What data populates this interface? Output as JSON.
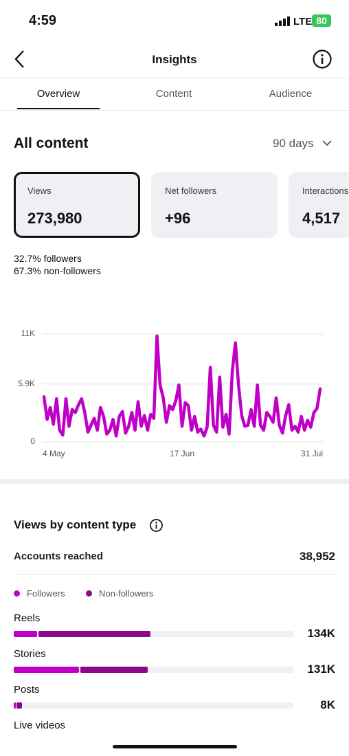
{
  "status_bar": {
    "time": "4:59",
    "network": "LTE",
    "battery": "80"
  },
  "header": {
    "title": "Insights"
  },
  "tabs": [
    "Overview",
    "Content",
    "Audience"
  ],
  "section": {
    "title": "All content",
    "range": "90 days"
  },
  "cards": [
    {
      "label": "Views",
      "value": "273,980"
    },
    {
      "label": "Net followers",
      "value": "+96"
    },
    {
      "label": "Interactions",
      "value": "4,517"
    }
  ],
  "breakdown": [
    "32.7% followers",
    "67.3% non-followers"
  ],
  "reach": {
    "label": "Accounts reached",
    "value": "38,952"
  },
  "chart_data": [
    {
      "type": "line",
      "color": "#c000c8",
      "categories": [
        "4 May",
        null,
        null,
        null,
        null,
        null,
        null,
        null,
        null,
        null,
        null,
        null,
        null,
        null,
        null,
        null,
        null,
        null,
        null,
        null,
        null,
        null,
        null,
        null,
        null,
        null,
        null,
        null,
        null,
        null,
        null,
        null,
        null,
        null,
        null,
        null,
        null,
        null,
        null,
        null,
        null,
        null,
        null,
        null,
        "17 Jun",
        null,
        null,
        null,
        null,
        null,
        null,
        null,
        null,
        null,
        null,
        null,
        null,
        null,
        null,
        null,
        null,
        null,
        null,
        null,
        null,
        null,
        null,
        null,
        null,
        null,
        null,
        null,
        null,
        null,
        null,
        null,
        null,
        null,
        null,
        null,
        null,
        null,
        null,
        null,
        null,
        null,
        null,
        null,
        "31 Jul"
      ],
      "values": [
        4600,
        2300,
        3500,
        1800,
        4400,
        1200,
        700,
        4400,
        1600,
        3300,
        3000,
        3800,
        4400,
        3000,
        1000,
        1700,
        2400,
        1200,
        3500,
        2600,
        800,
        1200,
        2300,
        600,
        2600,
        3100,
        900,
        1600,
        3000,
        1200,
        4100,
        1600,
        2700,
        1200,
        2800,
        2400,
        10800,
        5800,
        4500,
        2000,
        3700,
        3300,
        4200,
        5800,
        1600,
        4000,
        3700,
        1200,
        2600,
        1000,
        1300,
        600,
        1500,
        7600,
        1700,
        1000,
        6600,
        1500,
        2800,
        800,
        7200,
        10100,
        5800,
        2700,
        1600,
        1700,
        3300,
        1600,
        5800,
        1700,
        1200,
        3000,
        2600,
        2000,
        4500,
        1700,
        900,
        2700,
        3800,
        1200,
        1600,
        1000,
        2600,
        1200,
        2200,
        1500,
        3000,
        3400,
        5400
      ],
      "ylim": [
        0,
        11000
      ],
      "yticks": [
        0,
        {
          "value": 5900,
          "label": "5.9K"
        },
        {
          "value": 11000,
          "label": "11K"
        }
      ],
      "grid": true
    },
    {
      "type": "bar",
      "title": "Views by content type",
      "categories": [
        "Reels",
        "Stories",
        "Posts",
        "Live videos"
      ],
      "series": [
        {
          "name": "Followers",
          "color": "#c000c8",
          "values": [
            23000,
            64000,
            2000,
            null
          ]
        },
        {
          "name": "Non-followers",
          "color": "#8a0a8c",
          "values": [
            111000,
            67000,
            6000,
            null
          ]
        }
      ],
      "totals": [
        134000,
        131000,
        8000,
        null
      ],
      "value_labels": [
        "134K",
        "131K",
        "8K",
        null
      ],
      "xlim": [
        0,
        273980
      ]
    }
  ]
}
